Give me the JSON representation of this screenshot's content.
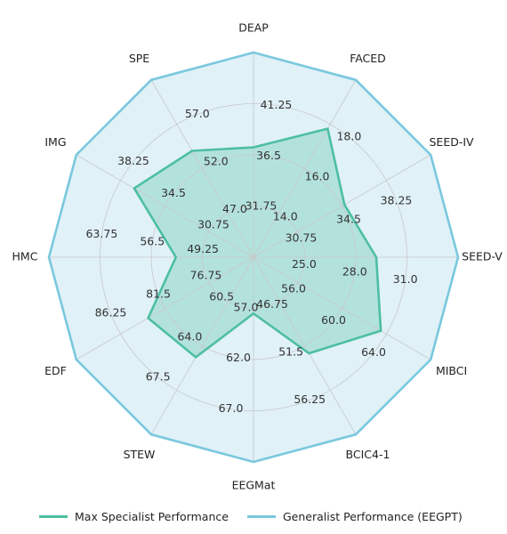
{
  "chart_data": {
    "type": "radar",
    "axes": [
      "DEAP",
      "FACED",
      "SEED-IV",
      "SEED-V",
      "MIBCI",
      "BCIC4-1",
      "EEGMat",
      "STEW",
      "EDF",
      "HMC",
      "IMG",
      "SPE"
    ],
    "ring_tick_labels": [
      [
        "31.75",
        "36.5",
        "41.25"
      ],
      [
        "14.0",
        "16.0",
        "18.0"
      ],
      [
        "30.75",
        "34.5",
        "38.25"
      ],
      [
        "25.0",
        "28.0",
        "31.0"
      ],
      [
        "56.0",
        "60.0",
        "64.0"
      ],
      [
        "46.75",
        "51.5",
        "56.25"
      ],
      [
        "57.0",
        "62.0",
        "67.0"
      ],
      [
        "60.5",
        "64.0",
        "67.5"
      ],
      [
        "76.75",
        "81.5",
        "86.25"
      ],
      [
        "49.25",
        "56.5",
        "63.75"
      ],
      [
        "30.75",
        "34.5",
        "38.25"
      ],
      [
        "47.0",
        "52.0",
        "57.0"
      ]
    ],
    "ring_values": [
      [
        31.75,
        36.5,
        41.25,
        46.0
      ],
      [
        14.0,
        16.0,
        18.0,
        20.0
      ],
      [
        30.75,
        34.5,
        38.25,
        42.0
      ],
      [
        25.0,
        28.0,
        31.0,
        34.0
      ],
      [
        56.0,
        60.0,
        64.0,
        68.0
      ],
      [
        46.75,
        51.5,
        56.25,
        61.0
      ],
      [
        57.0,
        62.0,
        67.0,
        72.0
      ],
      [
        60.5,
        64.0,
        67.5,
        71.0
      ],
      [
        76.75,
        81.5,
        86.25,
        91.0
      ],
      [
        49.25,
        56.5,
        63.75,
        71.0
      ],
      [
        30.75,
        34.5,
        38.25,
        42.0
      ],
      [
        47.0,
        52.0,
        57.0,
        62.0
      ]
    ],
    "series": [
      {
        "name": "Max Specialist Performance",
        "color": "#4dbfa0",
        "fill": "#4dbfa0",
        "values": [
          37.2,
          17.8,
          34.7,
          29.2,
          63.5,
          52.3,
          57.5,
          64.9,
          83.3,
          53.0,
          37.1,
          54.0
        ]
      },
      {
        "name": "Generalist Performance (EEGPT)",
        "color": "#7ac8de",
        "fill": "#d6ecf6",
        "values": [
          46.0,
          20.0,
          42.0,
          34.0,
          68.0,
          61.0,
          72.0,
          71.0,
          91.0,
          71.0,
          42.0,
          62.0
        ]
      }
    ],
    "grid": true,
    "legend_position": "bottom"
  }
}
